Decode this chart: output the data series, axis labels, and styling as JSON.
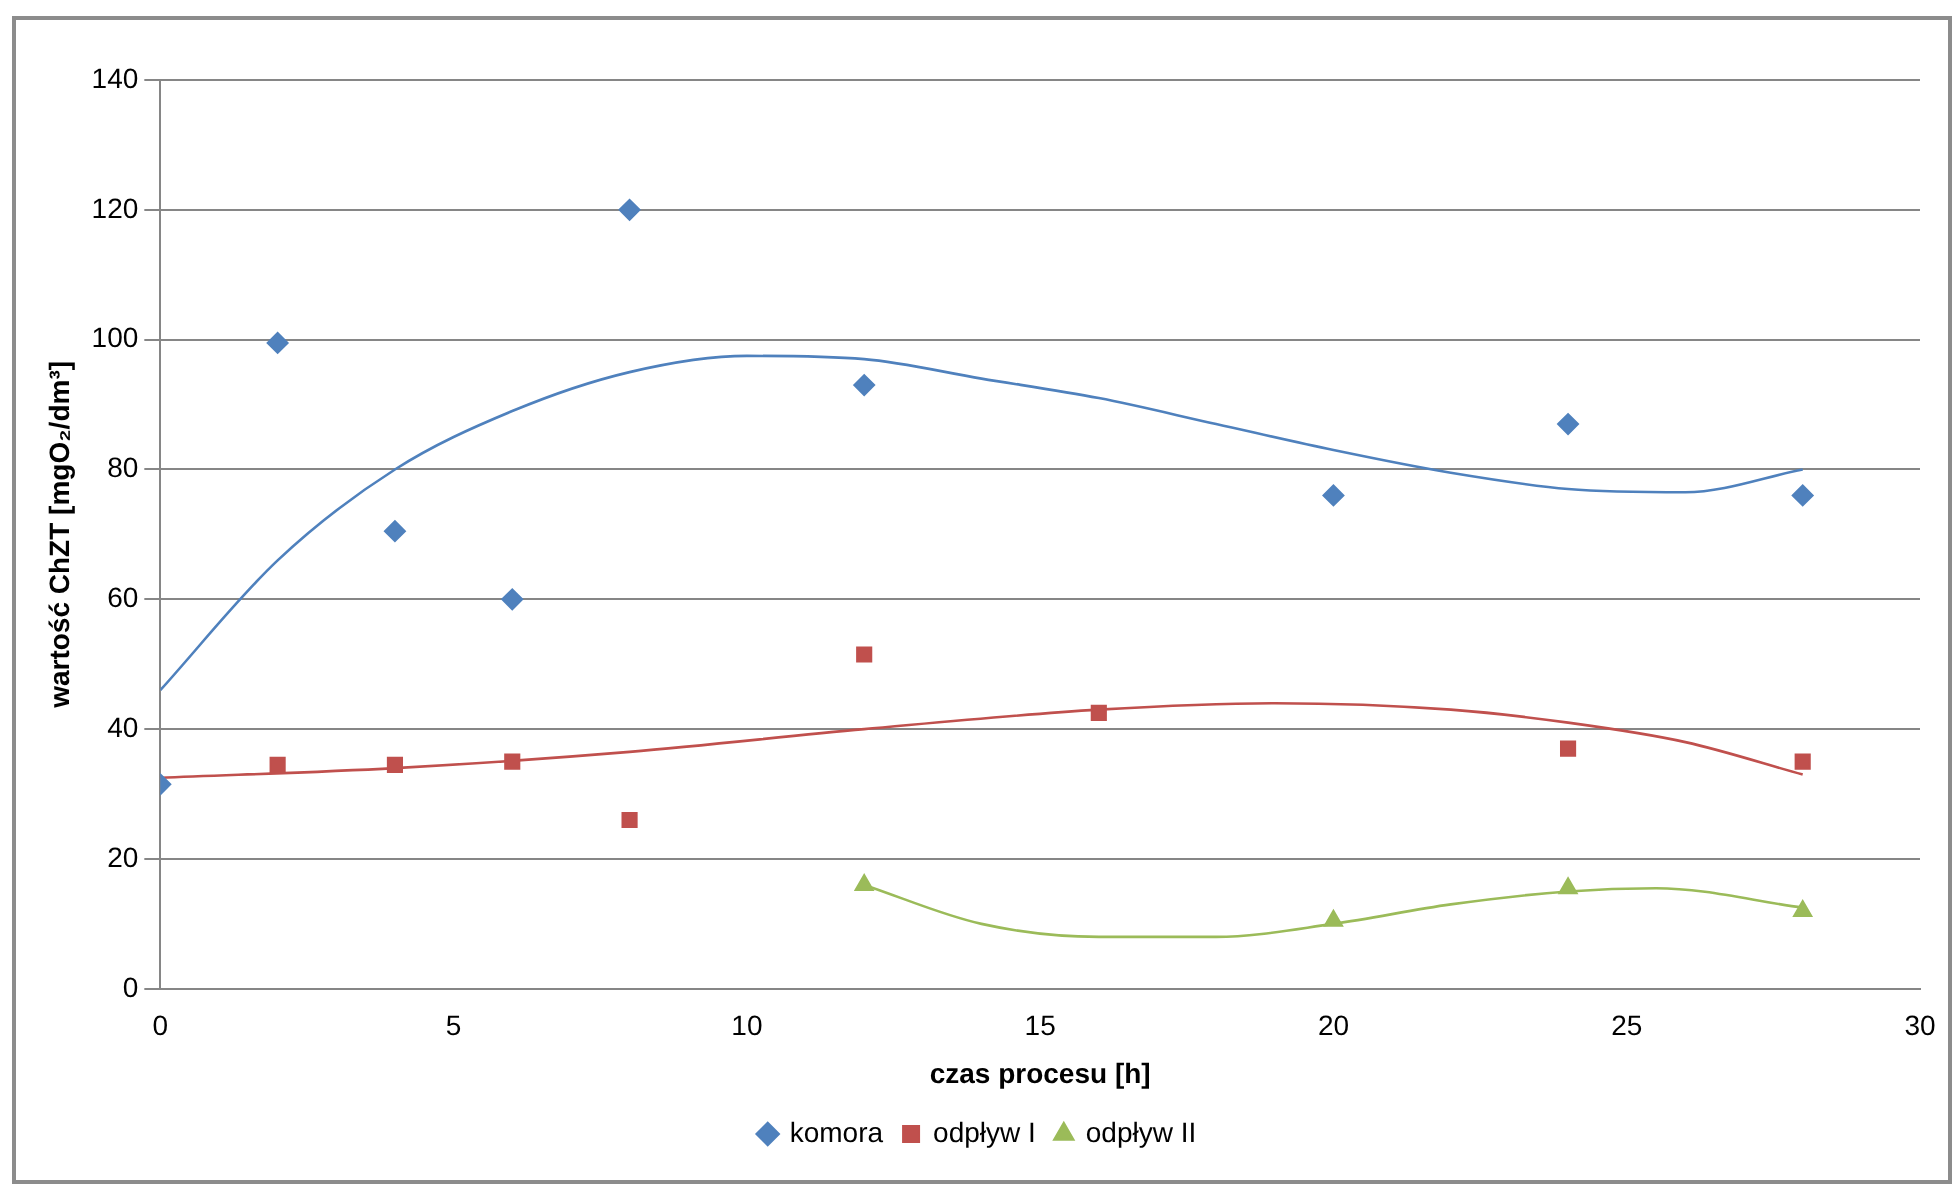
{
  "chart_data": {
    "type": "scatter",
    "xlabel": "czas procesu [h]",
    "ylabel": "wartość ChZT [mgO₂/dm³]",
    "xlim": [
      0,
      30
    ],
    "xticks": [
      0,
      5,
      10,
      15,
      20,
      25,
      30
    ],
    "ylim": [
      0,
      140
    ],
    "yticks": [
      0,
      20,
      40,
      60,
      80,
      100,
      120,
      140
    ],
    "grid": "y",
    "legend": "bottom",
    "series": [
      {
        "name": "komora",
        "marker": "diamond",
        "color": "#4f81bd",
        "x": [
          0,
          2,
          4,
          6,
          8,
          12,
          20,
          24,
          28
        ],
        "values": [
          31.5,
          99.5,
          70.5,
          60,
          120,
          93,
          76,
          87,
          76
        ]
      },
      {
        "name": "odpływ I",
        "marker": "square",
        "color": "#c0504d",
        "x": [
          2,
          4,
          6,
          8,
          12,
          16,
          24,
          28
        ],
        "values": [
          34.5,
          34.5,
          35,
          26,
          51.5,
          42.5,
          37,
          35
        ]
      },
      {
        "name": "odpływ II",
        "marker": "triangle",
        "color": "#9bbb59",
        "x": [
          12,
          20,
          24,
          28
        ],
        "values": [
          16,
          10.5,
          15.5,
          12
        ]
      },
      {
        "type": "line",
        "marker": "none",
        "color": "#4f81bd",
        "x": [
          0,
          2,
          4,
          6,
          8,
          10,
          12,
          14,
          16,
          18,
          20,
          22,
          24,
          26,
          28
        ],
        "values": [
          46,
          66,
          80,
          89,
          95,
          97.5,
          97,
          94,
          91,
          87,
          83,
          79.5,
          77,
          76.5,
          80
        ]
      },
      {
        "type": "line",
        "marker": "none",
        "color": "#c0504d",
        "x": [
          0,
          4,
          8,
          12,
          16,
          19,
          22,
          24,
          26,
          28
        ],
        "values": [
          32.5,
          34,
          36.5,
          40,
          43,
          44,
          43,
          41,
          38,
          33
        ]
      },
      {
        "type": "line",
        "marker": "none",
        "color": "#9bbb59",
        "x": [
          12,
          14,
          16,
          18,
          20,
          22,
          24,
          25.5,
          28
        ],
        "values": [
          16,
          10,
          8,
          8,
          10,
          13,
          15,
          15.5,
          12.5
        ]
      }
    ]
  }
}
